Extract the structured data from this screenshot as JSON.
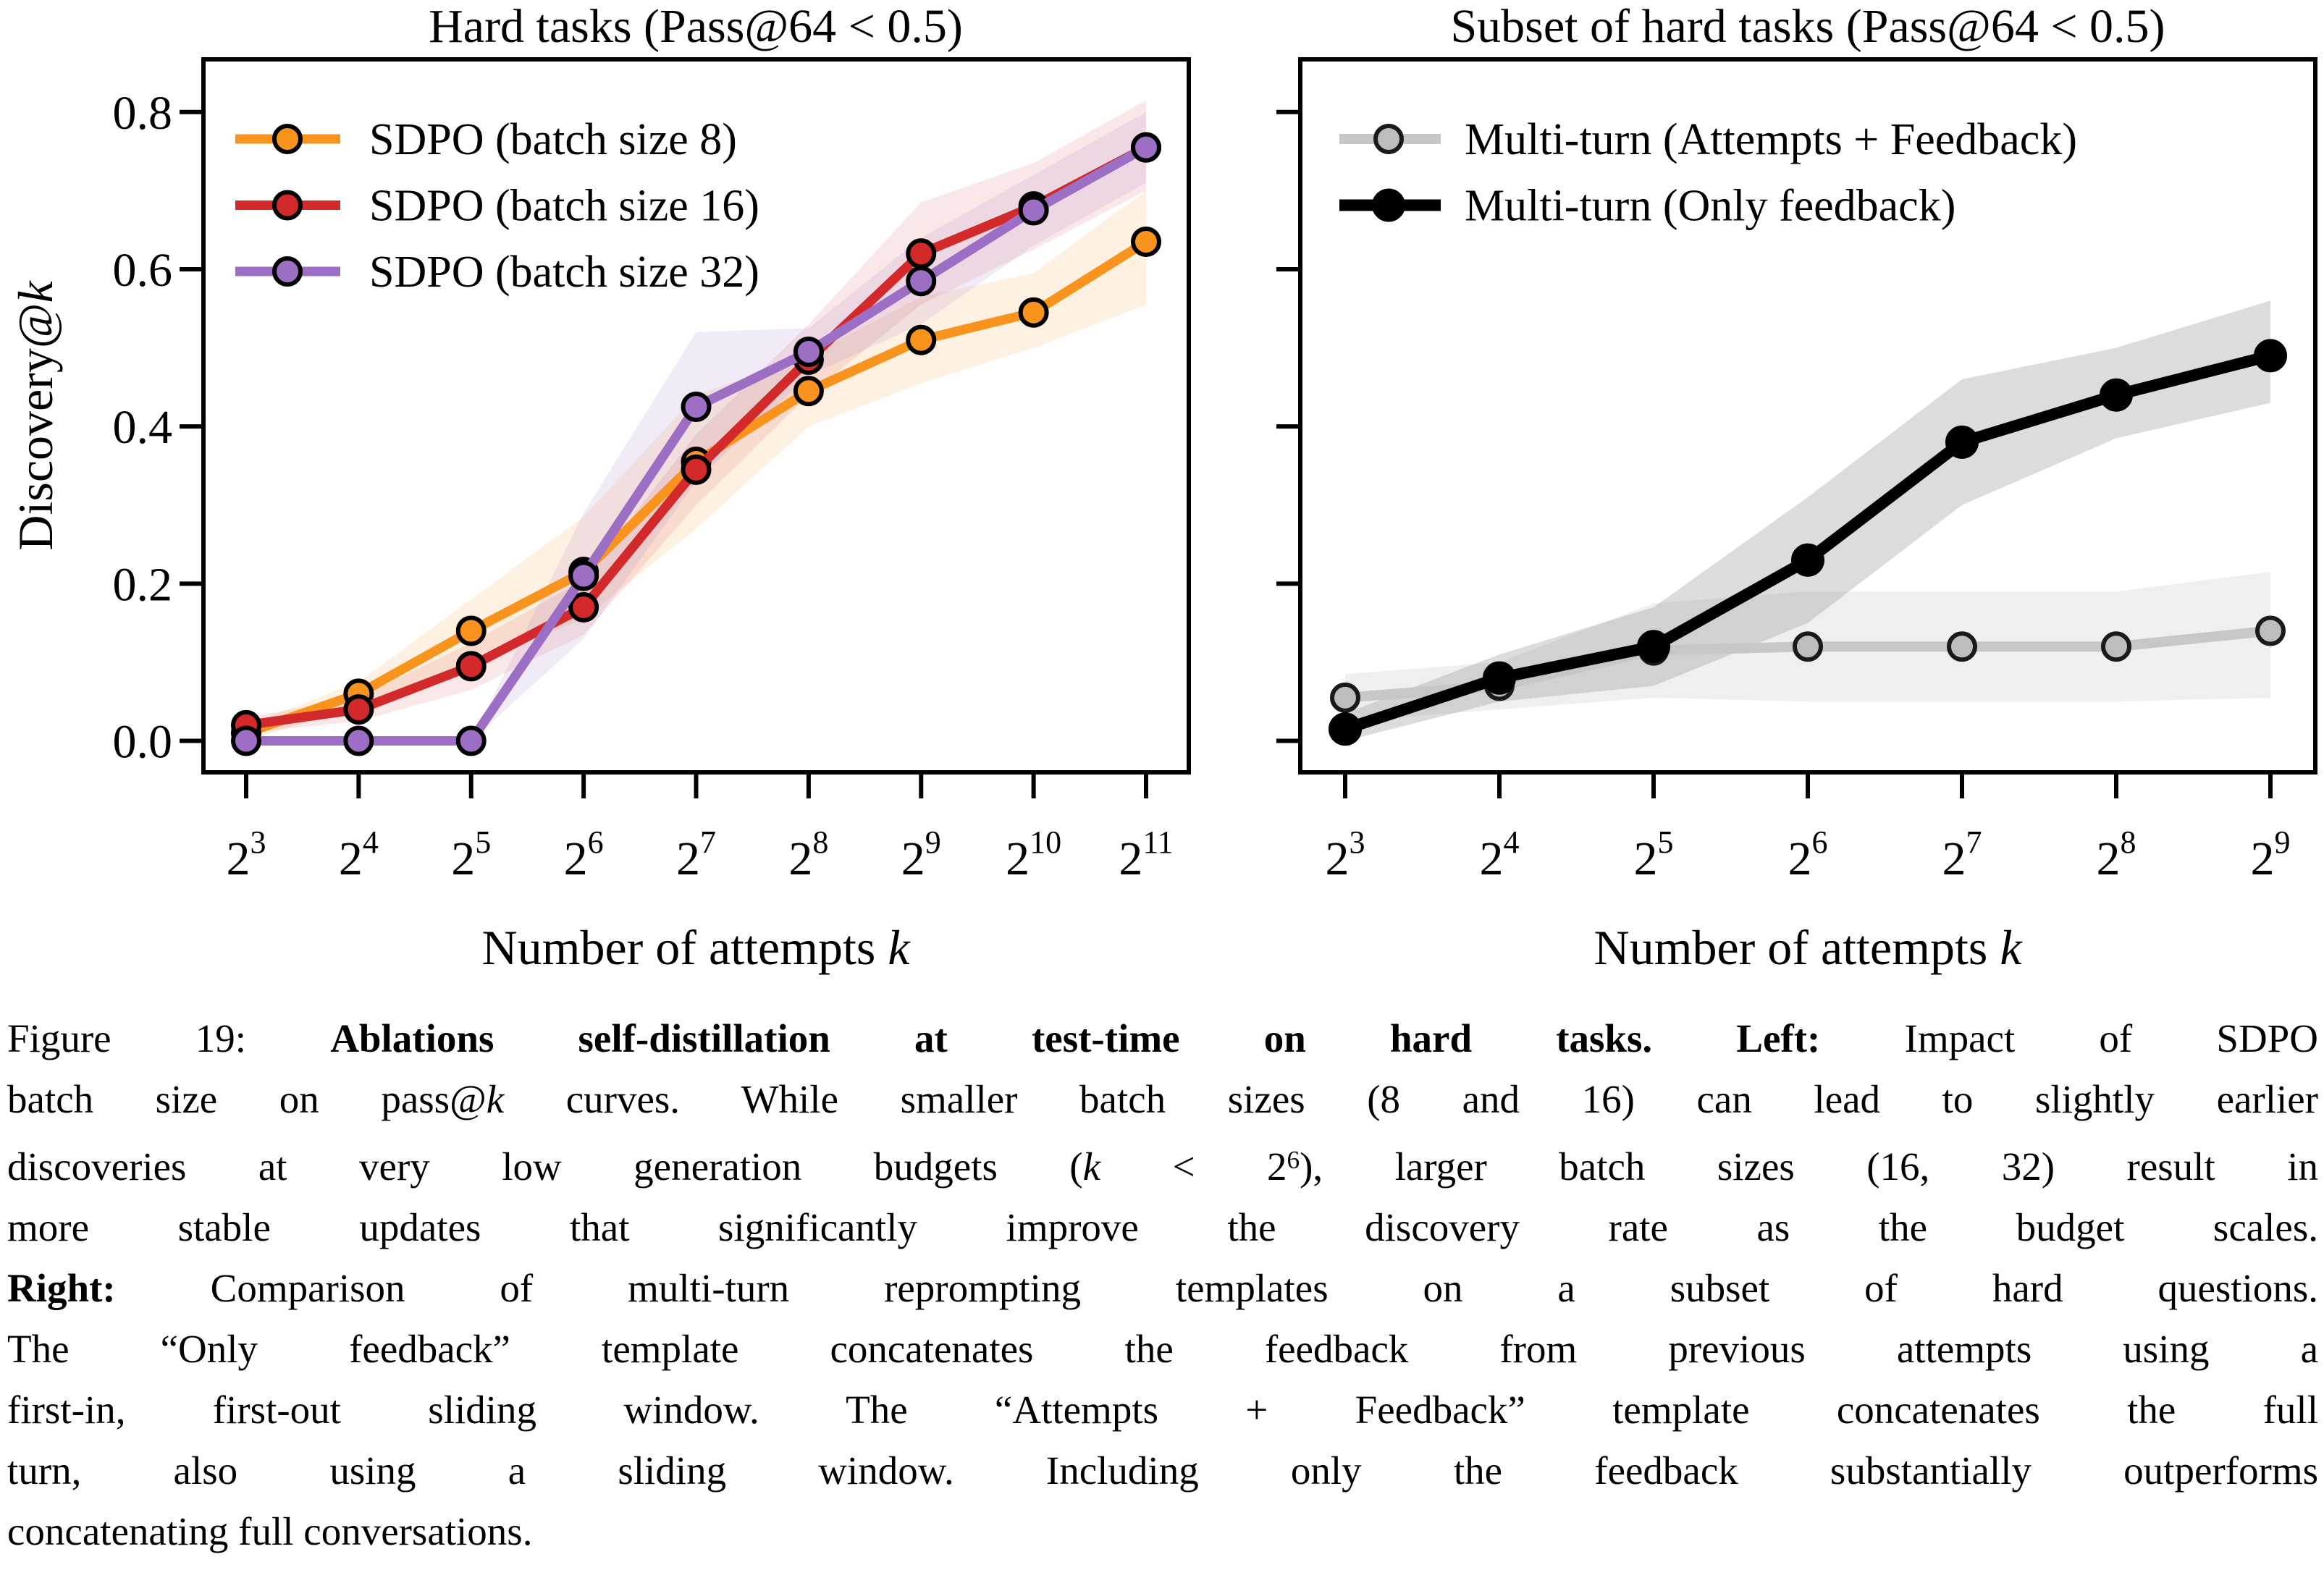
{
  "figure": {
    "caption_lines": [
      [
        {
          "t": "Figure 19: ",
          "s": "n"
        },
        {
          "t": "Ablations self-distillation at test-time on hard tasks. Left:",
          "s": "b"
        },
        {
          "t": " Impact of SDPO",
          "s": "n"
        }
      ],
      [
        {
          "t": "batch size on pass@",
          "s": "n"
        },
        {
          "t": "k",
          "s": "i"
        },
        {
          "t": " curves. While smaller batch sizes (8 and 16) can lead to slightly earlier",
          "s": "n"
        }
      ],
      [
        {
          "t": "discoveries at very low generation budgets (",
          "s": "n"
        },
        {
          "t": "k",
          "s": "i"
        },
        {
          "t": " < 2",
          "s": "n"
        },
        {
          "t": "6",
          "s": "sup"
        },
        {
          "t": "), larger batch sizes (16, 32) result in",
          "s": "n"
        }
      ],
      [
        {
          "t": "more stable updates that significantly improve the discovery rate as the budget scales.",
          "s": "n"
        }
      ],
      [
        {
          "t": "Right:",
          "s": "b"
        },
        {
          "t": " Comparison of multi-turn reprompting templates on a subset of hard questions.",
          "s": "n"
        }
      ],
      [
        {
          "t": "The “Only feedback” template concatenates the feedback from previous attempts using a",
          "s": "n"
        }
      ],
      [
        {
          "t": "first-in, first-out sliding window. The “Attempts + Feedback” template concatenates the full",
          "s": "n"
        }
      ],
      [
        {
          "t": "turn, also using a sliding window. Including only the feedback substantially outperforms",
          "s": "n"
        }
      ],
      [
        {
          "t": "concatenating full conversations.",
          "s": "n"
        }
      ]
    ]
  },
  "chart_data": [
    {
      "type": "line",
      "title": "Hard tasks (Pass@64 < 0.5)",
      "xlabel_parts": [
        {
          "t": "Number of attempts "
        },
        {
          "t": "k",
          "italic": true
        }
      ],
      "ylabel_parts": [
        {
          "t": "Discovery@"
        },
        {
          "t": "k",
          "italic": true
        }
      ],
      "x_tick_base": "2",
      "x_exponents": [
        3,
        4,
        5,
        6,
        7,
        8,
        9,
        10,
        11
      ],
      "yticks": [
        0.0,
        0.2,
        0.4,
        0.6,
        0.8
      ],
      "ytick_labels": [
        "0.0",
        "0.2",
        "0.4",
        "0.6",
        "0.8"
      ],
      "show_ytick_labels": true,
      "ylim": [
        -0.04,
        0.867
      ],
      "grid": false,
      "legend_position": "upper-left",
      "series": [
        {
          "name": "SDPO (batch size 8)",
          "color": "#F8941D",
          "marker_fill": "#F8941D",
          "marker_edge": "#000000",
          "marker_size": 18,
          "line_width": 13,
          "band_color": "#F8941D",
          "band_opacity": 0.13,
          "values": [
            0.01,
            0.06,
            0.14,
            0.215,
            0.355,
            0.445,
            0.51,
            0.545,
            0.635
          ],
          "band_lower": [
            0.0,
            0.045,
            0.1,
            0.155,
            0.27,
            0.4,
            0.455,
            0.5,
            0.555
          ],
          "band_upper": [
            0.02,
            0.075,
            0.18,
            0.285,
            0.44,
            0.49,
            0.565,
            0.595,
            0.7
          ]
        },
        {
          "name": "SDPO (batch size 16)",
          "color": "#D2292B",
          "marker_fill": "#D2292B",
          "marker_edge": "#000000",
          "marker_size": 18,
          "line_width": 13,
          "band_color": "#D2292B",
          "band_opacity": 0.11,
          "values": [
            0.02,
            0.04,
            0.095,
            0.17,
            0.345,
            0.485,
            0.62,
            0.68,
            0.755
          ],
          "band_lower": [
            0.01,
            0.025,
            0.065,
            0.135,
            0.3,
            0.44,
            0.555,
            0.625,
            0.7
          ],
          "band_upper": [
            0.03,
            0.055,
            0.125,
            0.205,
            0.39,
            0.53,
            0.685,
            0.735,
            0.815
          ]
        },
        {
          "name": "SDPO (batch size 32)",
          "color": "#9C6FC5",
          "marker_fill": "#9C6FC5",
          "marker_edge": "#000000",
          "marker_size": 18,
          "line_width": 13,
          "band_color": "#9C6FC5",
          "band_opacity": 0.14,
          "values": [
            0.0,
            0.0,
            0.0,
            0.21,
            0.425,
            0.495,
            0.585,
            0.675,
            0.755
          ],
          "band_lower": [
            0.0,
            0.0,
            0.0,
            0.13,
            0.33,
            0.465,
            0.53,
            0.63,
            0.71
          ],
          "band_upper": [
            0.0,
            0.0,
            0.0,
            0.29,
            0.52,
            0.525,
            0.64,
            0.72,
            0.8
          ]
        }
      ]
    },
    {
      "type": "line",
      "title": "Subset of hard tasks (Pass@64 < 0.5)",
      "xlabel_parts": [
        {
          "t": "Number of attempts "
        },
        {
          "t": "k",
          "italic": true
        }
      ],
      "ylabel_parts": null,
      "x_tick_base": "2",
      "x_exponents": [
        3,
        4,
        5,
        6,
        7,
        8,
        9
      ],
      "yticks": [
        0.0,
        0.2,
        0.4,
        0.6,
        0.8
      ],
      "ytick_labels": [],
      "show_ytick_labels": false,
      "ylim": [
        -0.04,
        0.867
      ],
      "grid": false,
      "legend_position": "upper-left",
      "series": [
        {
          "name": "Multi-turn (Attempts + Feedback)",
          "color": "#C7C7C7",
          "marker_fill": "#BDBDBD",
          "marker_edge": "#1A1A1A",
          "marker_size": 18,
          "line_width": 14,
          "band_color": "#C9C9C9",
          "band_opacity": 0.3,
          "values": [
            0.055,
            0.07,
            0.115,
            0.12,
            0.12,
            0.12,
            0.14
          ],
          "band_lower": [
            0.025,
            0.04,
            0.055,
            0.05,
            0.05,
            0.05,
            0.055
          ],
          "band_upper": [
            0.085,
            0.1,
            0.175,
            0.19,
            0.19,
            0.19,
            0.215
          ]
        },
        {
          "name": "Multi-turn (Only feedback)",
          "color": "#000000",
          "marker_fill": "#000000",
          "marker_edge": "#000000",
          "marker_size": 20,
          "line_width": 16,
          "band_color": "#8A8A8A",
          "band_opacity": 0.3,
          "values": [
            0.015,
            0.08,
            0.12,
            0.23,
            0.38,
            0.44,
            0.49
          ],
          "band_lower": [
            0.0,
            0.05,
            0.07,
            0.15,
            0.3,
            0.385,
            0.43
          ],
          "band_upper": [
            0.035,
            0.11,
            0.17,
            0.31,
            0.46,
            0.5,
            0.56
          ]
        }
      ]
    }
  ]
}
